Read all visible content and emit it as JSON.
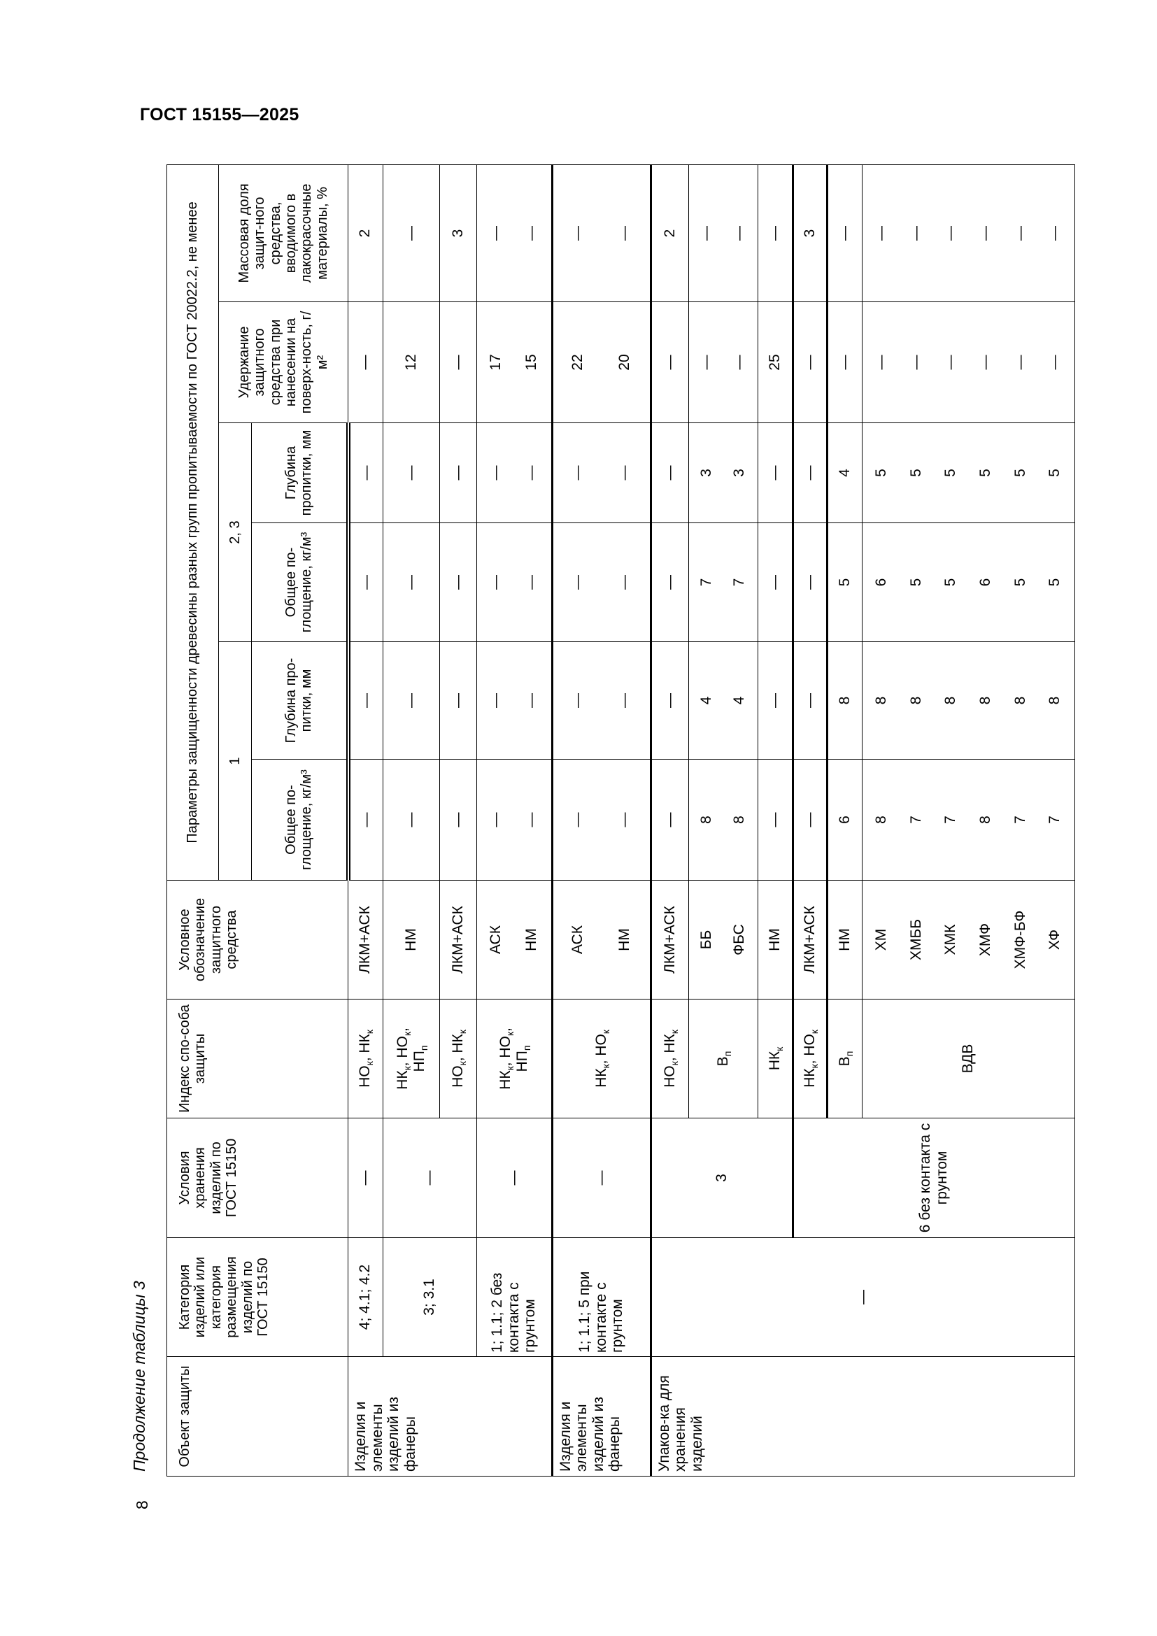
{
  "page": {
    "header": "ГОСТ 15155—2025",
    "caption": "Продолжение таблицы 3",
    "page_number": "8"
  },
  "table": {
    "header": {
      "object": "Объект защиты",
      "category": "Категория изделий или категория размещения изделий по ГОСТ 15150",
      "storage": "Условия хранения изделий по ГОСТ 15150",
      "method_index": "Индекс спо-соба защиты",
      "agent": "Условное обозначение защитного средства",
      "params_title": "Параметры защищенности древесины разных групп пропитываемости по ГОСТ 20022.2, не менее",
      "group_1": "1",
      "group_23": "2, 3",
      "absorption_1": "Общее по-глощение, кг/м³",
      "depth_1": "Глубина про-питки, мм",
      "absorption_23": "Общее по-глощение, кг/м³",
      "depth_23": "Глубина пропитки, мм",
      "retention": "Удержание защитного средства при нанесении на поверх-ность, г/м²",
      "mass_fraction": "Массовая доля защит-ного средства, вводимого в лакокрасочные материалы, %"
    },
    "rows": [
      {
        "object": "Изделия и элементы изделий из фанеры",
        "category": "4; 4.1; 4.2",
        "storage": "—",
        "index": [
          [
            [
              "НО",
              "к"
            ],
            [
              ", НК",
              "к"
            ]
          ]
        ],
        "agent": [
          "ЛКМ+АСК"
        ],
        "absorption_1": [
          "—"
        ],
        "depth_1": [
          "—"
        ],
        "absorption_23": [
          "—"
        ],
        "depth_23": [
          "—"
        ],
        "retention": [
          "—"
        ],
        "mass_fraction": [
          "2"
        ]
      },
      {
        "category": "3; 3.1",
        "storage": "—",
        "index": [
          [
            [
              "НК",
              "к"
            ],
            [
              ", НО",
              "к"
            ],
            [
              ",",
              ""
            ]
          ],
          [
            [
              "НП",
              "п"
            ]
          ]
        ],
        "agent": [
          "НМ"
        ],
        "absorption_1": [
          "—"
        ],
        "depth_1": [
          "—"
        ],
        "absorption_23": [
          "—"
        ],
        "depth_23": [
          "—"
        ],
        "retention": [
          "12"
        ],
        "mass_fraction": [
          "—"
        ]
      },
      {
        "index": [
          [
            [
              "НО",
              "к"
            ],
            [
              ", НК",
              "к"
            ]
          ]
        ],
        "agent": [
          "ЛКМ+АСК"
        ],
        "absorption_1": [
          "—"
        ],
        "depth_1": [
          "—"
        ],
        "absorption_23": [
          "—"
        ],
        "depth_23": [
          "—"
        ],
        "retention": [
          "—"
        ],
        "mass_fraction": [
          "3"
        ]
      },
      {
        "category": "1; 1.1; 2 без контакта с грунтом",
        "storage": "—",
        "index": [
          [
            [
              "НК",
              "к"
            ],
            [
              ", НО",
              "к"
            ],
            [
              ",",
              ""
            ]
          ],
          [
            [
              "НП",
              "п"
            ]
          ]
        ],
        "agent": [
          "АСК",
          "НМ"
        ],
        "absorption_1": [
          "—",
          "—"
        ],
        "depth_1": [
          "—",
          "—"
        ],
        "absorption_23": [
          "—",
          "—"
        ],
        "depth_23": [
          "—",
          "—"
        ],
        "retention": [
          "17",
          "15"
        ],
        "mass_fraction": [
          "—",
          "—"
        ]
      },
      {
        "object": "Изделия и элементы изделий из фанеры",
        "category": "1; 1.1; 5 при контакте с грунтом",
        "storage": "—",
        "index": [
          [
            [
              "НК",
              "к"
            ],
            [
              ", НО",
              "к"
            ]
          ]
        ],
        "agent": [
          "АСК",
          "НМ"
        ],
        "absorption_1": [
          "—",
          "—"
        ],
        "depth_1": [
          "—",
          "—"
        ],
        "absorption_23": [
          "—",
          "—"
        ],
        "depth_23": [
          "—",
          "—"
        ],
        "retention": [
          "22",
          "20"
        ],
        "mass_fraction": [
          "—",
          "—"
        ]
      },
      {
        "object": "Упаков-ка для хранения изделий",
        "category": "—",
        "storage": "3",
        "index": [
          [
            [
              "НО",
              "к"
            ],
            [
              ", НК",
              "к"
            ]
          ]
        ],
        "agent": [
          "ЛКМ+АСК"
        ],
        "absorption_1": [
          "—"
        ],
        "depth_1": [
          "—"
        ],
        "absorption_23": [
          "—"
        ],
        "depth_23": [
          "—"
        ],
        "retention": [
          "—"
        ],
        "mass_fraction": [
          "2"
        ]
      },
      {
        "index": [
          [
            [
              "В",
              "п"
            ]
          ]
        ],
        "agent": [
          "ББ",
          "ФБС"
        ],
        "absorption_1": [
          "8",
          "8"
        ],
        "depth_1": [
          "4",
          "4"
        ],
        "absorption_23": [
          "7",
          "7"
        ],
        "depth_23": [
          "3",
          "3"
        ],
        "retention": [
          "—",
          "—"
        ],
        "mass_fraction": [
          "—",
          "—"
        ]
      },
      {
        "index": [
          [
            [
              "НК",
              "к"
            ]
          ]
        ],
        "agent": [
          "НМ"
        ],
        "absorption_1": [
          "—"
        ],
        "depth_1": [
          "—"
        ],
        "absorption_23": [
          "—"
        ],
        "depth_23": [
          "—"
        ],
        "retention": [
          "25"
        ],
        "mass_fraction": [
          "—"
        ]
      },
      {
        "storage": "6 без контакта с грунтом",
        "index": [
          [
            [
              "НК",
              "к"
            ],
            [
              ", НО",
              "к"
            ]
          ]
        ],
        "agent": [
          "ЛКМ+АСК"
        ],
        "absorption_1": [
          "—"
        ],
        "depth_1": [
          "—"
        ],
        "absorption_23": [
          "—"
        ],
        "depth_23": [
          "—"
        ],
        "retention": [
          "—"
        ],
        "mass_fraction": [
          "3"
        ]
      },
      {
        "index": [
          [
            [
              "В",
              "п"
            ]
          ]
        ],
        "agent": [
          "НМ"
        ],
        "absorption_1": [
          "6"
        ],
        "depth_1": [
          "8"
        ],
        "absorption_23": [
          "5"
        ],
        "depth_23": [
          "4"
        ],
        "retention": [
          "—"
        ],
        "mass_fraction": [
          "—"
        ]
      },
      {
        "index": [
          [
            [
              "ВДВ",
              ""
            ]
          ]
        ],
        "agent": [
          "ХМ",
          "ХМББ",
          "ХМК",
          "ХМФ",
          "ХМФ-БФ",
          "ХФ"
        ],
        "absorption_1": [
          "8",
          "7",
          "7",
          "8",
          "7",
          "7"
        ],
        "depth_1": [
          "8",
          "8",
          "8",
          "8",
          "8",
          "8"
        ],
        "absorption_23": [
          "6",
          "5",
          "5",
          "6",
          "5",
          "5"
        ],
        "depth_23": [
          "5",
          "5",
          "5",
          "5",
          "5",
          "5"
        ],
        "retention": [
          "—",
          "—",
          "—",
          "—",
          "—",
          "—"
        ],
        "mass_fraction": [
          "—",
          "—",
          "—",
          "—",
          "—",
          "—"
        ]
      }
    ]
  }
}
